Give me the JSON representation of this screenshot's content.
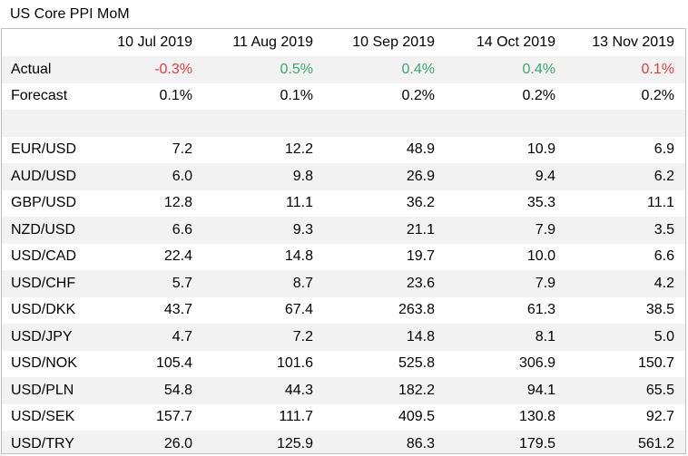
{
  "title": "US Core PPI MoM",
  "chart_data": {
    "type": "table",
    "title": "US Core PPI MoM",
    "columns": [
      "10 Jul 2019",
      "11 Aug 2019",
      "10 Sep 2019",
      "14 Oct 2019",
      "13 Nov 2019"
    ],
    "actual": {
      "label": "Actual",
      "values": [
        "-0.3%",
        "0.5%",
        "0.4%",
        "0.4%",
        "0.1%"
      ],
      "colors": [
        "#e03c3c",
        "#3aa66a",
        "#3aa66a",
        "#3aa66a",
        "#e03c3c"
      ]
    },
    "forecast": {
      "label": "Forecast",
      "values": [
        "0.1%",
        "0.1%",
        "0.2%",
        "0.2%",
        "0.2%"
      ]
    },
    "rows": [
      {
        "pair": "EUR/USD",
        "values": [
          "7.2",
          "12.2",
          "48.9",
          "10.9",
          "6.9"
        ]
      },
      {
        "pair": "AUD/USD",
        "values": [
          "6.0",
          "9.8",
          "26.9",
          "9.4",
          "6.2"
        ]
      },
      {
        "pair": "GBP/USD",
        "values": [
          "12.8",
          "11.1",
          "36.2",
          "35.3",
          "11.1"
        ]
      },
      {
        "pair": "NZD/USD",
        "values": [
          "6.6",
          "9.3",
          "21.1",
          "7.9",
          "3.5"
        ]
      },
      {
        "pair": "USD/CAD",
        "values": [
          "22.4",
          "14.8",
          "19.7",
          "10.0",
          "6.6"
        ]
      },
      {
        "pair": "USD/CHF",
        "values": [
          "5.7",
          "8.7",
          "23.6",
          "7.9",
          "4.2"
        ]
      },
      {
        "pair": "USD/DKK",
        "values": [
          "43.7",
          "67.4",
          "263.8",
          "61.3",
          "38.5"
        ]
      },
      {
        "pair": "USD/JPY",
        "values": [
          "4.7",
          "7.2",
          "14.8",
          "8.1",
          "5.0"
        ]
      },
      {
        "pair": "USD/NOK",
        "values": [
          "105.4",
          "101.6",
          "525.8",
          "306.9",
          "150.7"
        ]
      },
      {
        "pair": "USD/PLN",
        "values": [
          "54.8",
          "44.3",
          "182.2",
          "94.1",
          "65.5"
        ]
      },
      {
        "pair": "USD/SEK",
        "values": [
          "157.7",
          "111.7",
          "409.5",
          "130.8",
          "92.7"
        ]
      },
      {
        "pair": "USD/TRY",
        "values": [
          "26.0",
          "125.9",
          "86.3",
          "179.5",
          "561.2"
        ]
      }
    ],
    "colors": {
      "negative": "#e03c3c",
      "positive": "#3aa66a",
      "band": "#f2f2f2",
      "border": "#bfbfbf"
    }
  }
}
